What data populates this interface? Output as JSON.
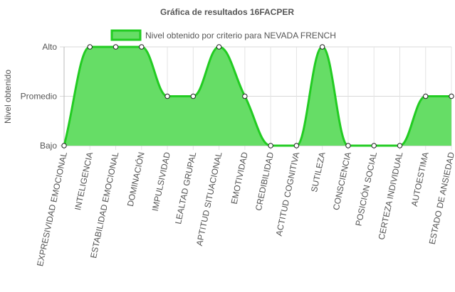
{
  "chart_data": {
    "type": "area",
    "title": "Gráfica de resultados 16FACPER",
    "ylabel": "Nivel obtenido",
    "xlabel": "",
    "y_ticks": [
      "Bajo",
      "Promedio",
      "Alto"
    ],
    "ylim": [
      0,
      2
    ],
    "grid": true,
    "legend_position": "top",
    "categories": [
      "EXPRESIVIDAD EMOCIONAL",
      "INTELIGENCIA",
      "ESTABILIDAD EMOCIONAL",
      "DOMINACIÓN",
      "IMPULSIVIDAD",
      "LEALTAD GRUPAL",
      "APTITUD SITUACIONAL",
      "EMOTIVIDAD",
      "CREDIBILIDAD",
      "ACTITUD COGNITIVA",
      "SUTILEZA",
      "CONSCIENCIA",
      "POSICIÓN SOCIAL",
      "CERTEZA INDIVIDUAL",
      "AUTOESTIMA",
      "ESTADO DE ANSIEDAD"
    ],
    "series": [
      {
        "name": "Nivel obtenido por criterio para NEVADA FRENCH",
        "values": [
          0,
          2,
          2,
          2,
          1,
          1,
          2,
          1,
          0,
          0,
          2,
          0,
          0,
          0,
          1,
          1
        ],
        "fill_color": "#66dd66",
        "line_color": "#22cc22"
      }
    ]
  }
}
